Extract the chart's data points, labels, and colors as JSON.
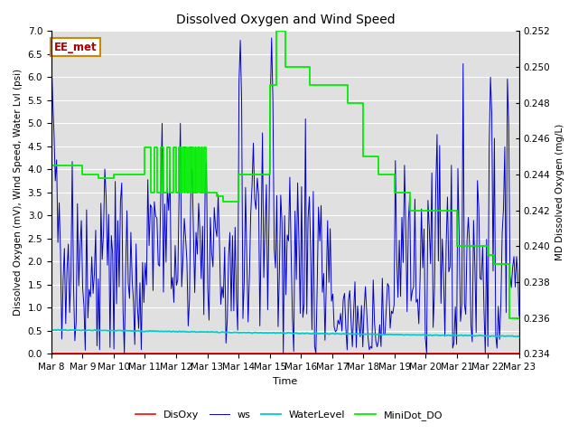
{
  "title": "Dissolved Oxygen and Wind Speed",
  "ylabel_left": "Dissolved Oxygen (mV), Wind Speed, Water Lvl (psi)",
  "ylabel_right": "MD Dissolved Oxygen (mg/L)",
  "xlabel": "Time",
  "annotation": "EE_met",
  "ylim_left": [
    0.0,
    7.0
  ],
  "ylim_right": [
    0.234,
    0.252
  ],
  "yticks_left": [
    0.0,
    0.5,
    1.0,
    1.5,
    2.0,
    2.5,
    3.0,
    3.5,
    4.0,
    4.5,
    5.0,
    5.5,
    6.0,
    6.5,
    7.0
  ],
  "yticks_right": [
    0.234,
    0.236,
    0.238,
    0.24,
    0.242,
    0.244,
    0.246,
    0.248,
    0.25,
    0.252
  ],
  "xtick_labels": [
    "Mar 8",
    "Mar 9",
    "Mar 10",
    "Mar 11",
    "Mar 12",
    "Mar 13",
    "Mar 14",
    "Mar 15",
    "Mar 16",
    "Mar 17",
    "Mar 18",
    "Mar 19",
    "Mar 20",
    "Mar 21",
    "Mar 22",
    "Mar 23"
  ],
  "colors": {
    "DisOxy": "#ff0000",
    "ws": "#0000cc",
    "WaterLevel": "#00cccc",
    "MiniDot_DO": "#00ee00",
    "background": "#e0e0e0",
    "grid": "#ffffff"
  },
  "legend_labels": [
    "DisOxy",
    "ws",
    "WaterLevel",
    "MiniDot_DO"
  ],
  "minidot_times": [
    0,
    0.3,
    0.5,
    1.0,
    1.5,
    2.0,
    2.2,
    2.5,
    3.0,
    3.2,
    3.5,
    3.7,
    4.0,
    4.1,
    4.2,
    4.3,
    4.4,
    4.5,
    4.6,
    4.7,
    4.8,
    4.9,
    5.0,
    5.1,
    5.2,
    5.3,
    5.4,
    5.5,
    5.7,
    6.0,
    6.3,
    6.5,
    7.0,
    7.3,
    7.5,
    8.0,
    8.5,
    9.0,
    9.3,
    9.7,
    10.0,
    10.5,
    11.0,
    11.5,
    12.0,
    12.5,
    13.0,
    13.5,
    14.0,
    14.2,
    14.5,
    15.0
  ],
  "minidot_vals": [
    0.2445,
    0.2445,
    0.244,
    0.244,
    0.2438,
    0.244,
    0.2442,
    0.244,
    0.244,
    0.244,
    0.244,
    0.2455,
    0.2455,
    0.2455,
    0.2455,
    0.2455,
    0.2455,
    0.2455,
    0.2455,
    0.2455,
    0.2455,
    0.2455,
    0.243,
    0.243,
    0.243,
    0.243,
    0.243,
    0.243,
    0.2428,
    0.2425,
    0.244,
    0.244,
    0.249,
    0.252,
    0.249,
    0.249,
    0.248,
    0.248,
    0.246,
    0.246,
    0.244,
    0.244,
    0.243,
    0.242,
    0.242,
    0.242,
    0.24,
    0.24,
    0.239,
    0.2395,
    0.236,
    0.236
  ]
}
